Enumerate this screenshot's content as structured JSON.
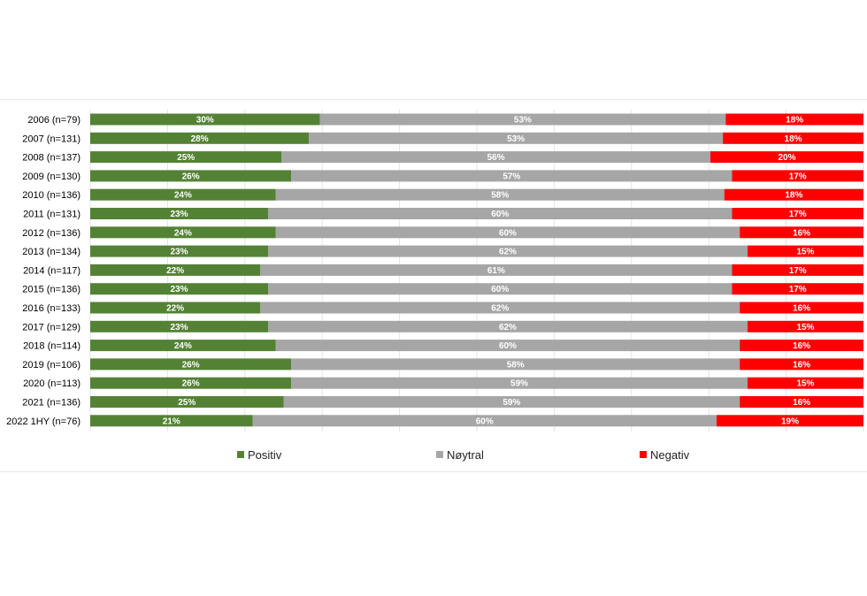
{
  "chart_data": {
    "type": "bar",
    "orientation": "horizontal",
    "stacked": "100%",
    "categories": [
      "2006 (n=79)",
      "2007 (n=131)",
      "2008 (n=137)",
      "2009 (n=130)",
      "2010 (n=136)",
      "2011 (n=131)",
      "2012 (n=136)",
      "2013 (n=134)",
      "2014 (n=117)",
      "2015 (n=136)",
      "2016 (n=133)",
      "2017 (n=129)",
      "2018 (n=114)",
      "2019 (n=106)",
      "2020 (n=113)",
      "2021 (n=136)",
      "2022 1HY (n=76)"
    ],
    "series": [
      {
        "name": "Positiv",
        "color": "#548235",
        "values": [
          30,
          28,
          25,
          26,
          24,
          23,
          24,
          23,
          22,
          23,
          22,
          23,
          24,
          26,
          26,
          25,
          21
        ]
      },
      {
        "name": "Nøytral",
        "color": "#a6a6a6",
        "values": [
          53,
          53,
          56,
          57,
          58,
          60,
          60,
          62,
          61,
          60,
          62,
          62,
          60,
          58,
          59,
          59,
          60
        ]
      },
      {
        "name": "Negativ",
        "color": "#ff0000",
        "values": [
          18,
          18,
          20,
          17,
          18,
          17,
          16,
          15,
          17,
          17,
          16,
          15,
          16,
          16,
          15,
          16,
          19
        ]
      }
    ],
    "value_suffix": "%",
    "legend_position": "bottom",
    "grid": true
  }
}
